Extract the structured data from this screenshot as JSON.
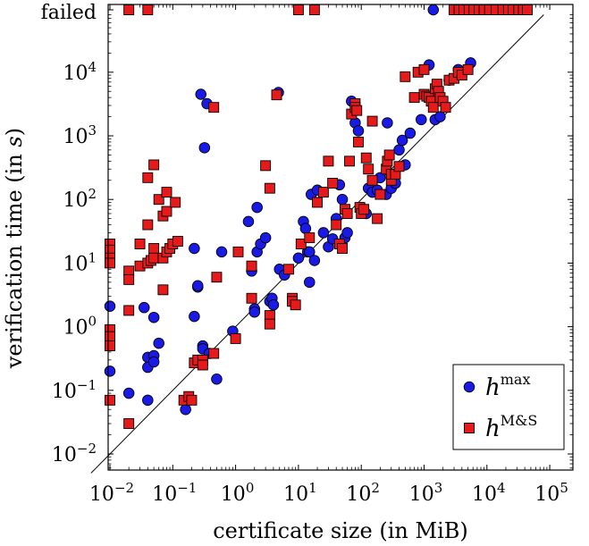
{
  "chart_data": {
    "type": "scatter",
    "xscale": "log",
    "yscale": "log",
    "xlim": [
      0.005,
      100000
    ],
    "ylim": [
      0.005,
      100000
    ],
    "failed_label": "failed",
    "xlabel": "certificate size (in MiB)",
    "ylabel_prefix": "verification time (in ",
    "ylabel_var": "s",
    "ylabel_suffix": ")",
    "legend_position": "bottom-right",
    "xticks": [
      {
        "value": 0.01,
        "base": "10",
        "exp": "−2"
      },
      {
        "value": 0.1,
        "base": "10",
        "exp": "−1"
      },
      {
        "value": 1,
        "base": "10",
        "exp": "0"
      },
      {
        "value": 10,
        "base": "10",
        "exp": "1"
      },
      {
        "value": 100,
        "base": "10",
        "exp": "2"
      },
      {
        "value": 1000,
        "base": "10",
        "exp": "3"
      },
      {
        "value": 10000,
        "base": "10",
        "exp": "4"
      },
      {
        "value": 100000,
        "base": "10",
        "exp": "5"
      }
    ],
    "yticks": [
      {
        "value": 0.01,
        "base": "10",
        "exp": "−2"
      },
      {
        "value": 0.1,
        "base": "10",
        "exp": "−1"
      },
      {
        "value": 1,
        "label": "10"
      },
      {
        "value": 10,
        "label": "10"
      },
      {
        "value": 100,
        "label": "10"
      },
      {
        "value": 1000,
        "base": "10",
        "exp": "3"
      },
      {
        "value": 10000,
        "base": "10",
        "exp": "4"
      }
    ],
    "diagonal": true,
    "series": [
      {
        "name": "h",
        "name_sup": "max",
        "marker": "circle",
        "color": "#1a1ae6",
        "points": [
          [
            0.01,
            2.1
          ],
          [
            0.01,
            0.2
          ],
          [
            0.02,
            0.09
          ],
          [
            0.035,
            2.0
          ],
          [
            0.04,
            0.33
          ],
          [
            0.04,
            0.23
          ],
          [
            0.04,
            0.07
          ],
          [
            0.05,
            1.4
          ],
          [
            0.05,
            0.35
          ],
          [
            0.05,
            0.28
          ],
          [
            0.06,
            0.55
          ],
          [
            0.16,
            0.05
          ],
          [
            0.18,
            0.07
          ],
          [
            0.22,
            17
          ],
          [
            0.22,
            1.45
          ],
          [
            0.25,
            4.2
          ],
          [
            0.25,
            4.4
          ],
          [
            0.28,
            4500
          ],
          [
            0.3,
            0.5
          ],
          [
            0.3,
            0.45
          ],
          [
            0.32,
            650
          ],
          [
            0.35,
            3200
          ],
          [
            0.38,
            0.38
          ],
          [
            0.5,
            0.15
          ],
          [
            0.6,
            15
          ],
          [
            0.9,
            0.85
          ],
          [
            1.6,
            45
          ],
          [
            1.8,
            7.5
          ],
          [
            2.0,
            1.9
          ],
          [
            2.0,
            1.7
          ],
          [
            2.2,
            75
          ],
          [
            2.2,
            15
          ],
          [
            2.5,
            20
          ],
          [
            3.0,
            25
          ],
          [
            3.5,
            2.5
          ],
          [
            3.8,
            2.8
          ],
          [
            4.0,
            2.2
          ],
          [
            4.8,
            4800
          ],
          [
            5.0,
            8
          ],
          [
            6.0,
            6.5
          ],
          [
            10,
            12
          ],
          [
            12,
            45
          ],
          [
            13,
            35
          ],
          [
            14,
            15
          ],
          [
            15,
            15
          ],
          [
            15,
            5
          ],
          [
            18,
            11
          ],
          [
            16,
            120
          ],
          [
            20,
            140
          ],
          [
            25,
            30
          ],
          [
            30,
            18
          ],
          [
            35,
            24
          ],
          [
            40,
            50
          ],
          [
            45,
            170
          ],
          [
            50,
            100
          ],
          [
            55,
            25
          ],
          [
            60,
            30
          ],
          [
            70,
            3500
          ],
          [
            80,
            1600
          ],
          [
            90,
            1200
          ],
          [
            100,
            75
          ],
          [
            120,
            60
          ],
          [
            130,
            150
          ],
          [
            150,
            130
          ],
          [
            180,
            140
          ],
          [
            200,
            220
          ],
          [
            250,
            120
          ],
          [
            260,
            1600
          ],
          [
            300,
            150
          ],
          [
            350,
            180
          ],
          [
            400,
            600
          ],
          [
            450,
            850
          ],
          [
            500,
            350
          ],
          [
            600,
            1100
          ],
          [
            900,
            1800
          ],
          [
            1200,
            13000
          ],
          [
            1400,
            100000
          ],
          [
            1500,
            1800
          ],
          [
            1800,
            2000
          ],
          [
            2500,
            7500
          ],
          [
            3500,
            11000
          ],
          [
            5500,
            14000
          ]
        ]
      },
      {
        "name": "h",
        "name_sup": "M&S",
        "marker": "square",
        "color": "#e61a1a",
        "points": [
          [
            0.01,
            20
          ],
          [
            0.01,
            16
          ],
          [
            0.01,
            12
          ],
          [
            0.01,
            10
          ],
          [
            0.01,
            0.9
          ],
          [
            0.01,
            0.7
          ],
          [
            0.01,
            0.5
          ],
          [
            0.01,
            0.07
          ],
          [
            0.02,
            100000
          ],
          [
            0.02,
            7.5
          ],
          [
            0.02,
            5.5
          ],
          [
            0.02,
            1.8
          ],
          [
            0.02,
            0.03
          ],
          [
            0.03,
            20
          ],
          [
            0.03,
            9
          ],
          [
            0.04,
            100000
          ],
          [
            0.04,
            220
          ],
          [
            0.04,
            40
          ],
          [
            0.04,
            10
          ],
          [
            0.045,
            11
          ],
          [
            0.05,
            350
          ],
          [
            0.05,
            17
          ],
          [
            0.05,
            12
          ],
          [
            0.06,
            100
          ],
          [
            0.07,
            55
          ],
          [
            0.07,
            12
          ],
          [
            0.07,
            3.8
          ],
          [
            0.08,
            130
          ],
          [
            0.08,
            65
          ],
          [
            0.08,
            15
          ],
          [
            0.09,
            17
          ],
          [
            0.1,
            20
          ],
          [
            0.11,
            90
          ],
          [
            0.12,
            22
          ],
          [
            0.15,
            0.07
          ],
          [
            0.18,
            0.08
          ],
          [
            0.2,
            0.07
          ],
          [
            0.22,
            0.27
          ],
          [
            0.25,
            0.3
          ],
          [
            0.3,
            0.3
          ],
          [
            0.3,
            0.25
          ],
          [
            0.45,
            2800
          ],
          [
            0.5,
            6
          ],
          [
            0.45,
            0.38
          ],
          [
            1.0,
            0.65
          ],
          [
            1.1,
            15
          ],
          [
            1.8,
            9
          ],
          [
            1.8,
            2.8
          ],
          [
            3.0,
            340
          ],
          [
            3.5,
            150
          ],
          [
            3.5,
            1.5
          ],
          [
            3.5,
            1.1
          ],
          [
            4.5,
            4400
          ],
          [
            7,
            8
          ],
          [
            8,
            2.8
          ],
          [
            8,
            2.5
          ],
          [
            9,
            2.2
          ],
          [
            10,
            100000
          ],
          [
            11,
            20
          ],
          [
            15,
            25
          ],
          [
            18,
            100000
          ],
          [
            20,
            90
          ],
          [
            25,
            130
          ],
          [
            30,
            400
          ],
          [
            35,
            180
          ],
          [
            40,
            40
          ],
          [
            45,
            20
          ],
          [
            50,
            17
          ],
          [
            55,
            70
          ],
          [
            60,
            60
          ],
          [
            65,
            400
          ],
          [
            70,
            2200
          ],
          [
            80,
            3200
          ],
          [
            80,
            2800
          ],
          [
            85,
            2500
          ],
          [
            90,
            800
          ],
          [
            95,
            75
          ],
          [
            100,
            60
          ],
          [
            110,
            70
          ],
          [
            120,
            450
          ],
          [
            130,
            300
          ],
          [
            150,
            200
          ],
          [
            150,
            1700
          ],
          [
            180,
            50
          ],
          [
            200,
            120
          ],
          [
            250,
            300
          ],
          [
            260,
            400
          ],
          [
            280,
            500
          ],
          [
            300,
            200
          ],
          [
            300,
            250
          ],
          [
            350,
            250
          ],
          [
            400,
            330
          ],
          [
            500,
            8500
          ],
          [
            700,
            4000
          ],
          [
            800,
            10000
          ],
          [
            1000,
            11000
          ],
          [
            1000,
            4500
          ],
          [
            1100,
            4200
          ],
          [
            1200,
            4000
          ],
          [
            1300,
            3500
          ],
          [
            1400,
            2800
          ],
          [
            1500,
            5500
          ],
          [
            1600,
            6500
          ],
          [
            1700,
            5000
          ],
          [
            1800,
            4000
          ],
          [
            2000,
            3500
          ],
          [
            2200,
            2800
          ],
          [
            2500,
            7500
          ],
          [
            3000,
            8000
          ],
          [
            3500,
            10000
          ],
          [
            4000,
            9000
          ],
          [
            5000,
            11000
          ],
          [
            3000,
            100000
          ],
          [
            3600,
            100000
          ],
          [
            4300,
            100000
          ],
          [
            5200,
            100000
          ],
          [
            6200,
            100000
          ],
          [
            7500,
            100000
          ],
          [
            9000,
            100000
          ],
          [
            11000,
            100000
          ],
          [
            14000,
            100000
          ],
          [
            18000,
            100000
          ],
          [
            22000,
            100000
          ],
          [
            26000,
            100000
          ],
          [
            32000,
            100000
          ],
          [
            38000,
            100000
          ],
          [
            44000,
            100000
          ]
        ]
      }
    ]
  }
}
